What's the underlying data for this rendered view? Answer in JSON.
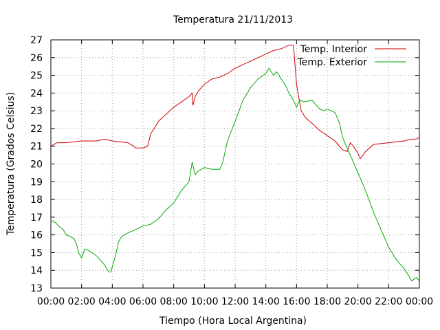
{
  "chart_data": {
    "type": "line",
    "title": "Temperatura 21/11/2013",
    "xlabel": "Tiempo (Hora Local Argentina)",
    "ylabel": "Temperatura (Grados Celsius)",
    "xlim": [
      0,
      24
    ],
    "ylim": [
      13,
      27
    ],
    "grid": true,
    "legend_position": "top-right",
    "x_ticks": [
      {
        "value": 0,
        "label": "00:00"
      },
      {
        "value": 2,
        "label": "02:00"
      },
      {
        "value": 4,
        "label": "04:00"
      },
      {
        "value": 6,
        "label": "06:00"
      },
      {
        "value": 8,
        "label": "08:00"
      },
      {
        "value": 10,
        "label": "10:00"
      },
      {
        "value": 12,
        "label": "12:00"
      },
      {
        "value": 14,
        "label": "14:00"
      },
      {
        "value": 16,
        "label": "16:00"
      },
      {
        "value": 18,
        "label": "18:00"
      },
      {
        "value": 20,
        "label": "20:00"
      },
      {
        "value": 22,
        "label": "22:00"
      },
      {
        "value": 24,
        "label": "00:00"
      }
    ],
    "y_ticks": [
      {
        "value": 13,
        "label": "13"
      },
      {
        "value": 14,
        "label": "14"
      },
      {
        "value": 15,
        "label": "15"
      },
      {
        "value": 16,
        "label": "16"
      },
      {
        "value": 17,
        "label": "17"
      },
      {
        "value": 18,
        "label": "18"
      },
      {
        "value": 19,
        "label": "19"
      },
      {
        "value": 20,
        "label": "20"
      },
      {
        "value": 21,
        "label": "21"
      },
      {
        "value": 22,
        "label": "22"
      },
      {
        "value": 23,
        "label": "23"
      },
      {
        "value": 24,
        "label": "24"
      },
      {
        "value": 25,
        "label": "25"
      },
      {
        "value": 26,
        "label": "26"
      },
      {
        "value": 27,
        "label": "27"
      }
    ],
    "series": [
      {
        "name": "Temp. Interior",
        "color": "#cc0000",
        "x": [
          0,
          0.2,
          0.4,
          1.0,
          2.0,
          3.0,
          3.5,
          4.0,
          5.0,
          5.4,
          5.5,
          6.0,
          6.3,
          6.5,
          6.8,
          7.0,
          7.5,
          8.0,
          8.5,
          9.0,
          9.2,
          9.25,
          9.4,
          9.6,
          10.0,
          10.5,
          11.0,
          11.5,
          12.0,
          12.5,
          13.0,
          13.5,
          14.0,
          14.5,
          15.0,
          15.5,
          15.8,
          16.0,
          16.3,
          16.6,
          17.0,
          17.5,
          18.0,
          18.5,
          19.0,
          19.3,
          19.5,
          19.7,
          20.0,
          20.15,
          20.5,
          21.0,
          22.0,
          23.0,
          23.5,
          23.8,
          24.0
        ],
        "y": [
          21.0,
          21.1,
          21.2,
          21.2,
          21.3,
          21.3,
          21.4,
          21.3,
          21.2,
          21.0,
          20.9,
          20.9,
          21.0,
          21.7,
          22.1,
          22.4,
          22.8,
          23.2,
          23.5,
          23.8,
          24.0,
          23.3,
          23.8,
          24.1,
          24.5,
          24.8,
          24.9,
          25.1,
          25.4,
          25.6,
          25.8,
          26.0,
          26.2,
          26.4,
          26.5,
          26.7,
          26.7,
          24.5,
          23.0,
          22.6,
          22.3,
          21.9,
          21.6,
          21.3,
          20.8,
          20.7,
          21.2,
          21.0,
          20.6,
          20.3,
          20.7,
          21.1,
          21.2,
          21.3,
          21.4,
          21.4,
          21.5
        ]
      },
      {
        "name": "Temp. Exterior",
        "color": "#00aa00",
        "x": [
          0,
          0.3,
          0.5,
          0.8,
          1.0,
          1.5,
          1.7,
          1.8,
          2.0,
          2.2,
          2.5,
          3.0,
          3.3,
          3.5,
          3.7,
          3.8,
          3.9,
          4.0,
          4.1,
          4.2,
          4.4,
          4.6,
          5.0,
          5.5,
          6.0,
          6.5,
          7.0,
          7.5,
          8.0,
          8.5,
          9.0,
          9.2,
          9.4,
          9.6,
          10.0,
          10.5,
          11.0,
          11.2,
          11.5,
          12.0,
          12.3,
          12.5,
          12.8,
          13.0,
          13.5,
          14.0,
          14.2,
          14.5,
          14.7,
          15.0,
          15.3,
          15.5,
          15.8,
          16.0,
          16.2,
          16.5,
          17.0,
          17.3,
          17.5,
          17.8,
          18.0,
          18.5,
          18.8,
          19.0,
          19.5,
          20.0,
          20.5,
          21.0,
          21.5,
          22.0,
          22.5,
          23.0,
          23.3,
          23.5,
          23.8,
          24.0
        ],
        "y": [
          16.8,
          16.7,
          16.5,
          16.3,
          16.0,
          15.8,
          15.4,
          15.0,
          14.7,
          15.2,
          15.1,
          14.8,
          14.5,
          14.3,
          14.0,
          13.9,
          13.9,
          14.2,
          14.5,
          14.8,
          15.6,
          15.9,
          16.1,
          16.3,
          16.5,
          16.6,
          16.9,
          17.4,
          17.8,
          18.5,
          19.0,
          20.1,
          19.4,
          19.6,
          19.8,
          19.7,
          19.7,
          20.1,
          21.3,
          22.4,
          23.1,
          23.6,
          24.0,
          24.3,
          24.8,
          25.1,
          25.4,
          25.0,
          25.2,
          24.8,
          24.4,
          24.0,
          23.6,
          23.2,
          23.6,
          23.5,
          23.6,
          23.3,
          23.1,
          23.0,
          23.1,
          22.9,
          22.3,
          21.5,
          20.5,
          19.5,
          18.5,
          17.3,
          16.3,
          15.3,
          14.6,
          14.1,
          13.7,
          13.4,
          13.6,
          13.4
        ]
      }
    ]
  }
}
